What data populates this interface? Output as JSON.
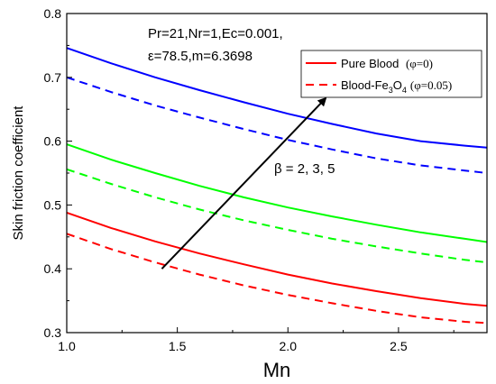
{
  "chart_data": {
    "type": "line",
    "xlabel": "Mn",
    "ylabel": "Skin friction coefficient",
    "xlim": [
      1.0,
      2.9
    ],
    "ylim": [
      0.3,
      0.8
    ],
    "x_ticks": [
      "1.0",
      "1.5",
      "2.0",
      "2.5"
    ],
    "y_ticks": [
      "0.3",
      "0.4",
      "0.5",
      "0.6",
      "0.7",
      "0.8"
    ],
    "grid": false,
    "legend_position": "top-right",
    "legend": [
      {
        "label": "Pure Blood",
        "param": "(φ=0)",
        "style": "solid",
        "color": "#ff0000"
      },
      {
        "label_prefix": "Blood-Fe",
        "sub": "3",
        "label_mid": "O",
        "sub2": "4",
        "param": "(φ=0.05)",
        "style": "dashed",
        "color": "#ff0000"
      }
    ],
    "annotation_params": [
      "Pr=21,Nr=1,Ec=0.001,",
      "ε=78.5,m=6.3698"
    ],
    "beta_label": "β = 2, 3, 5",
    "x": [
      1.0,
      1.2,
      1.4,
      1.6,
      1.8,
      2.0,
      2.2,
      2.4,
      2.6,
      2.8,
      2.9
    ],
    "series": [
      {
        "color": "#0000ff",
        "style": "solid",
        "values": [
          0.746,
          0.722,
          0.7,
          0.68,
          0.661,
          0.643,
          0.627,
          0.612,
          0.6,
          0.593,
          0.59
        ]
      },
      {
        "color": "#0000ff",
        "style": "dashed",
        "values": [
          0.7,
          0.677,
          0.656,
          0.637,
          0.619,
          0.602,
          0.587,
          0.573,
          0.562,
          0.554,
          0.55
        ]
      },
      {
        "color": "#00ff00",
        "style": "solid",
        "values": [
          0.595,
          0.571,
          0.55,
          0.53,
          0.512,
          0.496,
          0.482,
          0.469,
          0.457,
          0.447,
          0.442
        ]
      },
      {
        "color": "#00ff00",
        "style": "dashed",
        "values": [
          0.556,
          0.533,
          0.512,
          0.493,
          0.476,
          0.461,
          0.447,
          0.435,
          0.424,
          0.414,
          0.41
        ]
      },
      {
        "color": "#ff0000",
        "style": "solid",
        "values": [
          0.488,
          0.464,
          0.443,
          0.424,
          0.407,
          0.391,
          0.377,
          0.365,
          0.354,
          0.345,
          0.342
        ]
      },
      {
        "color": "#ff0000",
        "style": "dashed",
        "values": [
          0.455,
          0.431,
          0.41,
          0.391,
          0.374,
          0.359,
          0.346,
          0.334,
          0.324,
          0.317,
          0.315
        ]
      }
    ],
    "arrow": {
      "from": {
        "x": 1.43,
        "y": 0.4
      },
      "to": {
        "x": 2.17,
        "y": 0.667
      }
    }
  }
}
